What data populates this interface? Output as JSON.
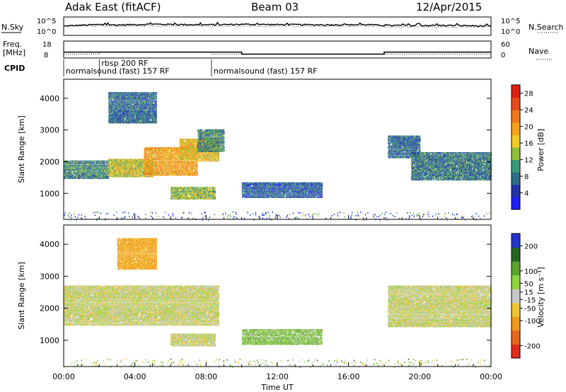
{
  "header": {
    "station": "Adak East (fitACF)",
    "beam": "Beam 03",
    "date": "12/Apr/2015"
  },
  "strip_labels": {
    "nsky": "N.Sky",
    "nsky_top": "10^5",
    "nsky_bottom": "10^0",
    "nsearch": "N.Search",
    "nsearch_top": "10^5",
    "nsearch_bottom": "10^0",
    "freq": "Freq.",
    "freq_unit": "[MHz]",
    "freq_top": "18",
    "freq_bottom": "8",
    "nave": "Nave",
    "nave_top": "60",
    "nave_bottom": "0",
    "cpid": "CPID"
  },
  "cpid_segments": [
    {
      "label": "normalsound (fast) 157 RF",
      "start_hour": 0,
      "end_hour": 8.3
    },
    {
      "label": "rbsp 200 RF",
      "start_hour": 2.0,
      "end_hour": 8.3
    },
    {
      "label": "normalsound (fast) 157 RF",
      "start_hour": 8.3,
      "end_hour": 24
    }
  ],
  "colors": {
    "power_scale": [
      "#1f1fff",
      "#2233aa",
      "#2e6e88",
      "#3a9a7a",
      "#8fbf3a",
      "#f0cc22",
      "#f5a11a",
      "#f07818",
      "#e84a18",
      "#e01f12"
    ],
    "velocity_scale": [
      "#2233cc",
      "#226622",
      "#5aa52a",
      "#8fd33e",
      "#c7c7c7",
      "#f0c431",
      "#f09a1a",
      "#e8661c",
      "#e12c1a"
    ]
  },
  "chart_data": [
    {
      "type": "line",
      "title": "Adak East (fitACF)",
      "subtitle": "Beam 03",
      "ylabel": "N.Sky",
      "y_right_label": "N.Search",
      "series": [
        {
          "name": "N.Sky",
          "x": [
            0,
            1,
            2,
            3,
            4,
            5,
            6,
            7,
            8,
            9,
            10,
            11,
            12,
            13,
            14,
            15,
            16,
            17,
            18,
            19,
            20,
            21,
            22,
            23,
            24
          ],
          "values": [
            300,
            600,
            900,
            700,
            900,
            1200,
            1000,
            900,
            800,
            900,
            1100,
            1000,
            900,
            900,
            800,
            800,
            800,
            900,
            500,
            500,
            500,
            500,
            500,
            400,
            300
          ]
        }
      ],
      "ylim": [
        "10^0",
        "10^5"
      ]
    },
    {
      "type": "line",
      "ylabel": "Freq. [MHz]",
      "y_right_label": "Nave",
      "series": [
        {
          "name": "Freq.",
          "x": [
            0,
            2.0,
            2.0,
            10.0,
            10.0,
            18.0,
            18.0,
            24
          ],
          "values": [
            11.5,
            11.5,
            11.5,
            11.5,
            10.3,
            10.3,
            11.5,
            11.5
          ]
        },
        {
          "name": "Nave",
          "x": [
            0,
            2.0,
            2.0,
            8.3,
            8.3,
            24
          ],
          "values": [
            14,
            14,
            20,
            20,
            14,
            14
          ]
        }
      ],
      "ylim_left": [
        8,
        18
      ],
      "ylim_right": [
        0,
        60
      ]
    },
    {
      "type": "heatmap",
      "ylabel": "Slant Range [km]",
      "xlabel": "",
      "xlim": [
        0,
        24
      ],
      "ylim": [
        180,
        4600
      ],
      "colorbar": {
        "label": "Power [dB]",
        "ticks": [
          4,
          8,
          12,
          16,
          20,
          24,
          28
        ],
        "range": [
          0,
          30
        ]
      },
      "y_ticks": [
        1000,
        2000,
        3000,
        4000
      ],
      "regions": [
        {
          "t0": 0.0,
          "t1": 2.5,
          "r0": 1450,
          "r1": 2050,
          "level": 8
        },
        {
          "t0": 2.5,
          "t1": 5.0,
          "r0": 1500,
          "r1": 2100,
          "level": 14
        },
        {
          "t0": 4.5,
          "t1": 7.5,
          "r0": 1550,
          "r1": 2450,
          "level": 18
        },
        {
          "t0": 6.5,
          "t1": 8.7,
          "r0": 2000,
          "r1": 2700,
          "level": 16
        },
        {
          "t0": 7.5,
          "t1": 9.0,
          "r0": 2300,
          "r1": 3000,
          "level": 8
        },
        {
          "t0": 2.5,
          "t1": 5.2,
          "r0": 3200,
          "r1": 4200,
          "level": 6
        },
        {
          "t0": 6.0,
          "t1": 8.5,
          "r0": 800,
          "r1": 1200,
          "level": 12
        },
        {
          "t0": 10.0,
          "t1": 14.5,
          "r0": 850,
          "r1": 1350,
          "level": 5
        },
        {
          "t0": 18.2,
          "t1": 20.0,
          "r0": 2100,
          "r1": 2800,
          "level": 6
        },
        {
          "t0": 19.5,
          "t1": 24.0,
          "r0": 1400,
          "r1": 2300,
          "level": 7
        }
      ]
    },
    {
      "type": "heatmap",
      "ylabel": "Slant Range [km]",
      "xlabel": "Time UT",
      "xlim": [
        0,
        24
      ],
      "ylim": [
        180,
        4600
      ],
      "colorbar": {
        "label": "Velocity [m s⁻¹]",
        "ticks": [
          -200,
          -100,
          -50,
          -15,
          15,
          50,
          100,
          200
        ],
        "range": [
          -250,
          250
        ]
      },
      "y_ticks": [
        1000,
        2000,
        3000,
        4000
      ],
      "x_ticks": [
        "00:00",
        "04:00",
        "08:00",
        "12:00",
        "16:00",
        "20:00",
        "00:00"
      ],
      "regions": [
        {
          "t0": 0.0,
          "t1": 8.7,
          "r0": 1450,
          "r1": 2700,
          "level": 0
        },
        {
          "t0": 3.0,
          "t1": 5.2,
          "r0": 3200,
          "r1": 4200,
          "level": -60
        },
        {
          "t0": 6.0,
          "t1": 8.5,
          "r0": 800,
          "r1": 1200,
          "level": 0
        },
        {
          "t0": 10.0,
          "t1": 14.5,
          "r0": 850,
          "r1": 1350,
          "level": 40
        },
        {
          "t0": 18.2,
          "t1": 24.0,
          "r0": 1400,
          "r1": 2700,
          "level": 0
        }
      ]
    }
  ]
}
